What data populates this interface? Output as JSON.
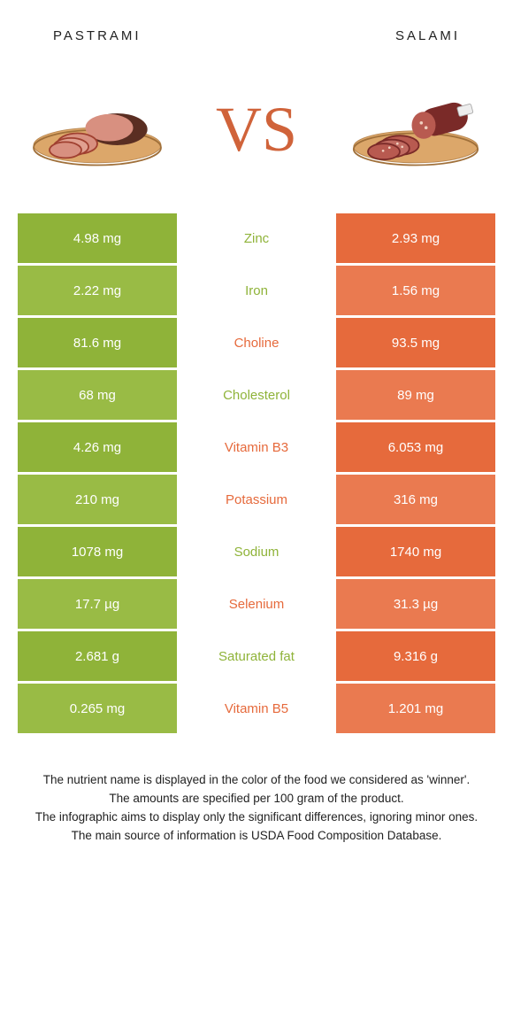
{
  "header": {
    "left": "pastrami",
    "right": "salami"
  },
  "vs": "VS",
  "colors": {
    "left_bg": "#8fb339",
    "left_bg_alt": "#99bb45",
    "right_bg": "#e66a3c",
    "right_bg_alt": "#ea7a50",
    "left_text": "#8fb339",
    "right_text": "#e66a3c",
    "board": "#dca76a",
    "meat_dark": "#5a2e22",
    "meat_light": "#d89080",
    "salami_dark": "#7a2a28",
    "salami_slice": "#b85a50"
  },
  "rows": [
    {
      "left": "4.98 mg",
      "label": "Zinc",
      "right": "2.93 mg",
      "winner": "left"
    },
    {
      "left": "2.22 mg",
      "label": "Iron",
      "right": "1.56 mg",
      "winner": "left"
    },
    {
      "left": "81.6 mg",
      "label": "Choline",
      "right": "93.5 mg",
      "winner": "right"
    },
    {
      "left": "68 mg",
      "label": "Cholesterol",
      "right": "89 mg",
      "winner": "left"
    },
    {
      "left": "4.26 mg",
      "label": "Vitamin B3",
      "right": "6.053 mg",
      "winner": "right"
    },
    {
      "left": "210 mg",
      "label": "Potassium",
      "right": "316 mg",
      "winner": "right"
    },
    {
      "left": "1078 mg",
      "label": "Sodium",
      "right": "1740 mg",
      "winner": "left"
    },
    {
      "left": "17.7 µg",
      "label": "Selenium",
      "right": "31.3 µg",
      "winner": "right"
    },
    {
      "left": "2.681 g",
      "label": "Saturated fat",
      "right": "9.316 g",
      "winner": "left"
    },
    {
      "left": "0.265 mg",
      "label": "Vitamin B5",
      "right": "1.201 mg",
      "winner": "right"
    }
  ],
  "footnote": {
    "l1": "The nutrient name is displayed in the color of the food we considered as 'winner'.",
    "l2": "The amounts are specified per 100 gram of the product.",
    "l3": "The infographic aims to display only the significant differences, ignoring minor ones.",
    "l4": "The main source of information is USDA Food Composition Database."
  }
}
